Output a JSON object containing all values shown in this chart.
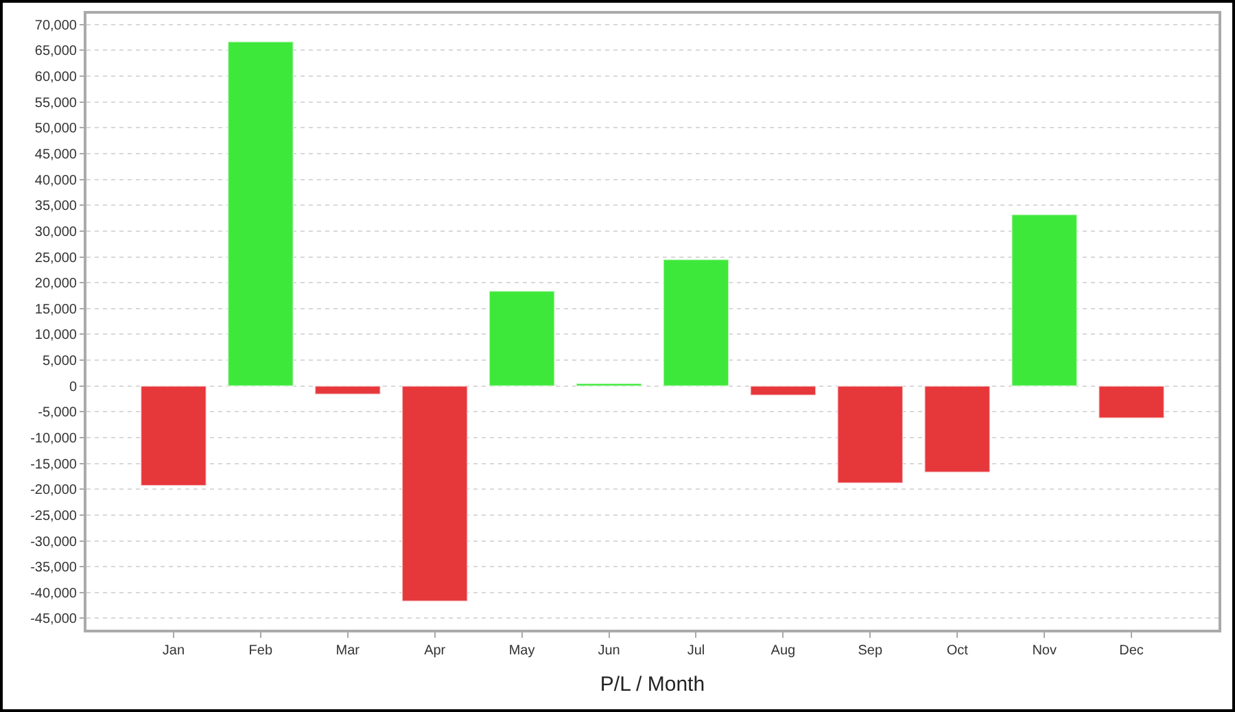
{
  "chart_data": {
    "type": "bar",
    "xlabel": "P/L / Month",
    "categories": [
      "Jan",
      "Feb",
      "Mar",
      "Apr",
      "May",
      "Jun",
      "Jul",
      "Aug",
      "Sep",
      "Oct",
      "Nov",
      "Dec"
    ],
    "values": [
      -19300,
      66700,
      -1600,
      -41700,
      18400,
      500,
      24500,
      -1800,
      -18800,
      -16700,
      33200,
      -6200
    ],
    "colors": [
      "#e6373b",
      "#3ee83a",
      "#e6373b",
      "#e6373b",
      "#3ee83a",
      "#3ee83a",
      "#3ee83a",
      "#e6373b",
      "#e6373b",
      "#e6373b",
      "#3ee83a",
      "#e6373b"
    ],
    "ylim": [
      -47200,
      72100
    ],
    "yticks": [
      {
        "value": -45000,
        "label": "-45,000"
      },
      {
        "value": -40000,
        "label": "-40,000"
      },
      {
        "value": -35000,
        "label": "-35,000"
      },
      {
        "value": -30000,
        "label": "-30,000"
      },
      {
        "value": -25000,
        "label": "-25,000"
      },
      {
        "value": -20000,
        "label": "-20,000"
      },
      {
        "value": -15000,
        "label": "-15,000"
      },
      {
        "value": -10000,
        "label": "-10,000"
      },
      {
        "value": -5000,
        "label": "-5,000"
      },
      {
        "value": 0,
        "label": "0"
      },
      {
        "value": 5000,
        "label": "5,000"
      },
      {
        "value": 10000,
        "label": "10,000"
      },
      {
        "value": 15000,
        "label": "15,000"
      },
      {
        "value": 20000,
        "label": "20,000"
      },
      {
        "value": 25000,
        "label": "25,000"
      },
      {
        "value": 30000,
        "label": "30,000"
      },
      {
        "value": 35000,
        "label": "35,000"
      },
      {
        "value": 40000,
        "label": "40,000"
      },
      {
        "value": 45000,
        "label": "45,000"
      },
      {
        "value": 50000,
        "label": "50,000"
      },
      {
        "value": 55000,
        "label": "55,000"
      },
      {
        "value": 60000,
        "label": "60,000"
      },
      {
        "value": 65000,
        "label": "65,000"
      },
      {
        "value": 70000,
        "label": "70,000"
      }
    ],
    "grid": "y"
  }
}
